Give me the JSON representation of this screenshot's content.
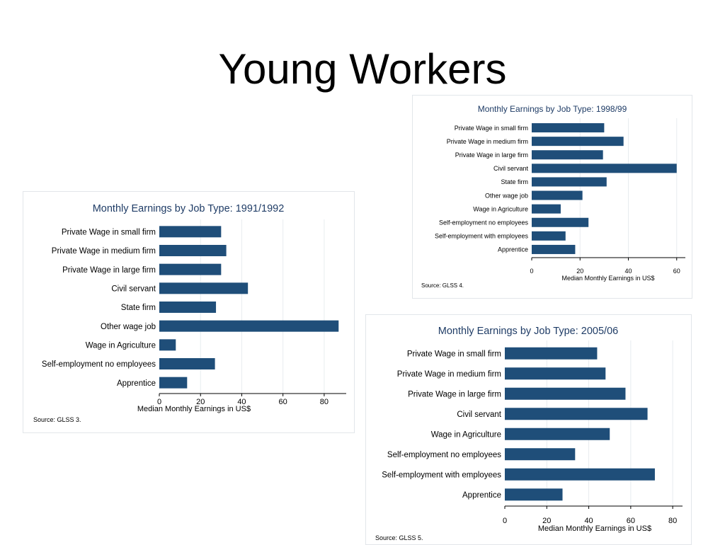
{
  "slide": {
    "title": "Young Workers"
  },
  "colors": {
    "bar": "#1f4e79",
    "grid": "#e8ecef",
    "title": "#1f3c66"
  },
  "chart_data": [
    {
      "type": "bar",
      "orientation": "horizontal",
      "title": "Monthly Earnings by Job Type: 1991/1992",
      "xlabel": "Median Monthly Earnings in US$",
      "ylabel": "",
      "categories": [
        "Private Wage in small firm",
        "Private Wage in medium firm",
        "Private Wage in large firm",
        "Civil servant",
        "State firm",
        "Other wage job",
        "Wage in Agriculture",
        "Self-employment no employees",
        "Apprentice"
      ],
      "values": [
        30,
        32.5,
        30,
        43,
        27.5,
        87,
        8,
        27,
        13.5
      ],
      "xlim": [
        0,
        90
      ],
      "xticks": [
        0,
        20,
        40,
        60,
        80
      ],
      "grid": true,
      "note": "Source: GLSS 3."
    },
    {
      "type": "bar",
      "orientation": "horizontal",
      "title": "Monthly Earnings by Job Type: 1998/99",
      "xlabel": "Median Monthly Earnings in US$",
      "ylabel": "",
      "categories": [
        "Private Wage in small firm",
        "Private Wage in medium firm",
        "Private Wage in large firm",
        "Civil servant",
        "State firm",
        "Other wage job",
        "Wage in Agriculture",
        "Self-employment no employees",
        "Self-employment with employees",
        "Apprentice"
      ],
      "values": [
        30,
        38,
        29.5,
        60,
        31,
        21,
        12,
        23.5,
        14,
        18
      ],
      "xlim": [
        0,
        63
      ],
      "xticks": [
        0,
        20,
        40,
        60
      ],
      "grid": true,
      "note": "Source: GLSS 4."
    },
    {
      "type": "bar",
      "orientation": "horizontal",
      "title": "Monthly Earnings by Job Type: 2005/06",
      "xlabel": "Median Monthly Earnings in US$",
      "ylabel": "",
      "categories": [
        "Private Wage in small firm",
        "Private Wage in medium firm",
        "Private Wage in large firm",
        "Civil servant",
        "Wage in Agriculture",
        "Self-employment no employees",
        "Self-employment with employees",
        "Apprentice"
      ],
      "values": [
        44,
        48,
        57.5,
        68,
        50,
        33.5,
        71.5,
        27.5
      ],
      "xlim": [
        0,
        84
      ],
      "xticks": [
        0,
        20,
        40,
        60,
        80
      ],
      "grid": true,
      "note": "Source: GLSS 5."
    }
  ]
}
